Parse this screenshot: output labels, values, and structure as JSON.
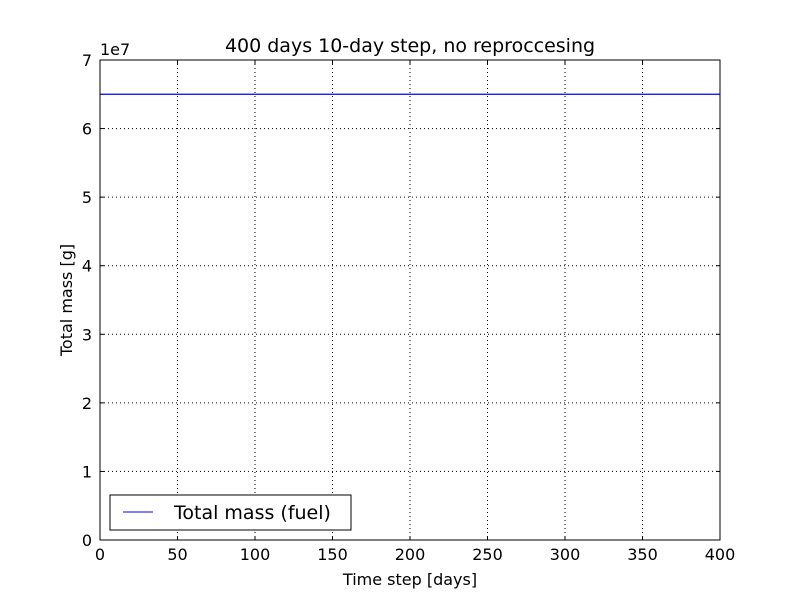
{
  "chart_data": {
    "type": "line",
    "title": "400 days 10-day step, no reproccesing",
    "xlabel": "Time step [days]",
    "ylabel": "Total mass [g]",
    "y_offset_label": "1e7",
    "xlim": [
      0,
      400
    ],
    "ylim": [
      0,
      70000000
    ],
    "x_ticks": [
      0,
      50,
      100,
      150,
      200,
      250,
      300,
      350,
      400
    ],
    "x_tick_labels": [
      "0",
      "50",
      "100",
      "150",
      "200",
      "250",
      "300",
      "350",
      "400"
    ],
    "y_ticks": [
      0,
      10000000,
      20000000,
      30000000,
      40000000,
      50000000,
      60000000,
      70000000
    ],
    "y_tick_labels": [
      "0",
      "1",
      "2",
      "3",
      "4",
      "5",
      "6",
      "7"
    ],
    "grid": true,
    "legend_position": "lower-left",
    "series": [
      {
        "name": "Total mass (fuel)",
        "color": "#0000ff",
        "x": [
          0,
          10,
          20,
          30,
          40,
          50,
          60,
          70,
          80,
          90,
          100,
          110,
          120,
          130,
          140,
          150,
          160,
          170,
          180,
          190,
          200,
          210,
          220,
          230,
          240,
          250,
          260,
          270,
          280,
          290,
          300,
          310,
          320,
          330,
          340,
          350,
          360,
          370,
          380,
          390,
          400
        ],
        "y": [
          65000000,
          65000000,
          65000000,
          65000000,
          65000000,
          65000000,
          65000000,
          65000000,
          65000000,
          65000000,
          65000000,
          65000000,
          65000000,
          65000000,
          65000000,
          65000000,
          65000000,
          65000000,
          65000000,
          65000000,
          65000000,
          65000000,
          65000000,
          65000000,
          65000000,
          65000000,
          65000000,
          65000000,
          65000000,
          65000000,
          65000000,
          65000000,
          65000000,
          65000000,
          65000000,
          65000000,
          65000000,
          65000000,
          65000000,
          65000000,
          65000000
        ]
      }
    ]
  }
}
